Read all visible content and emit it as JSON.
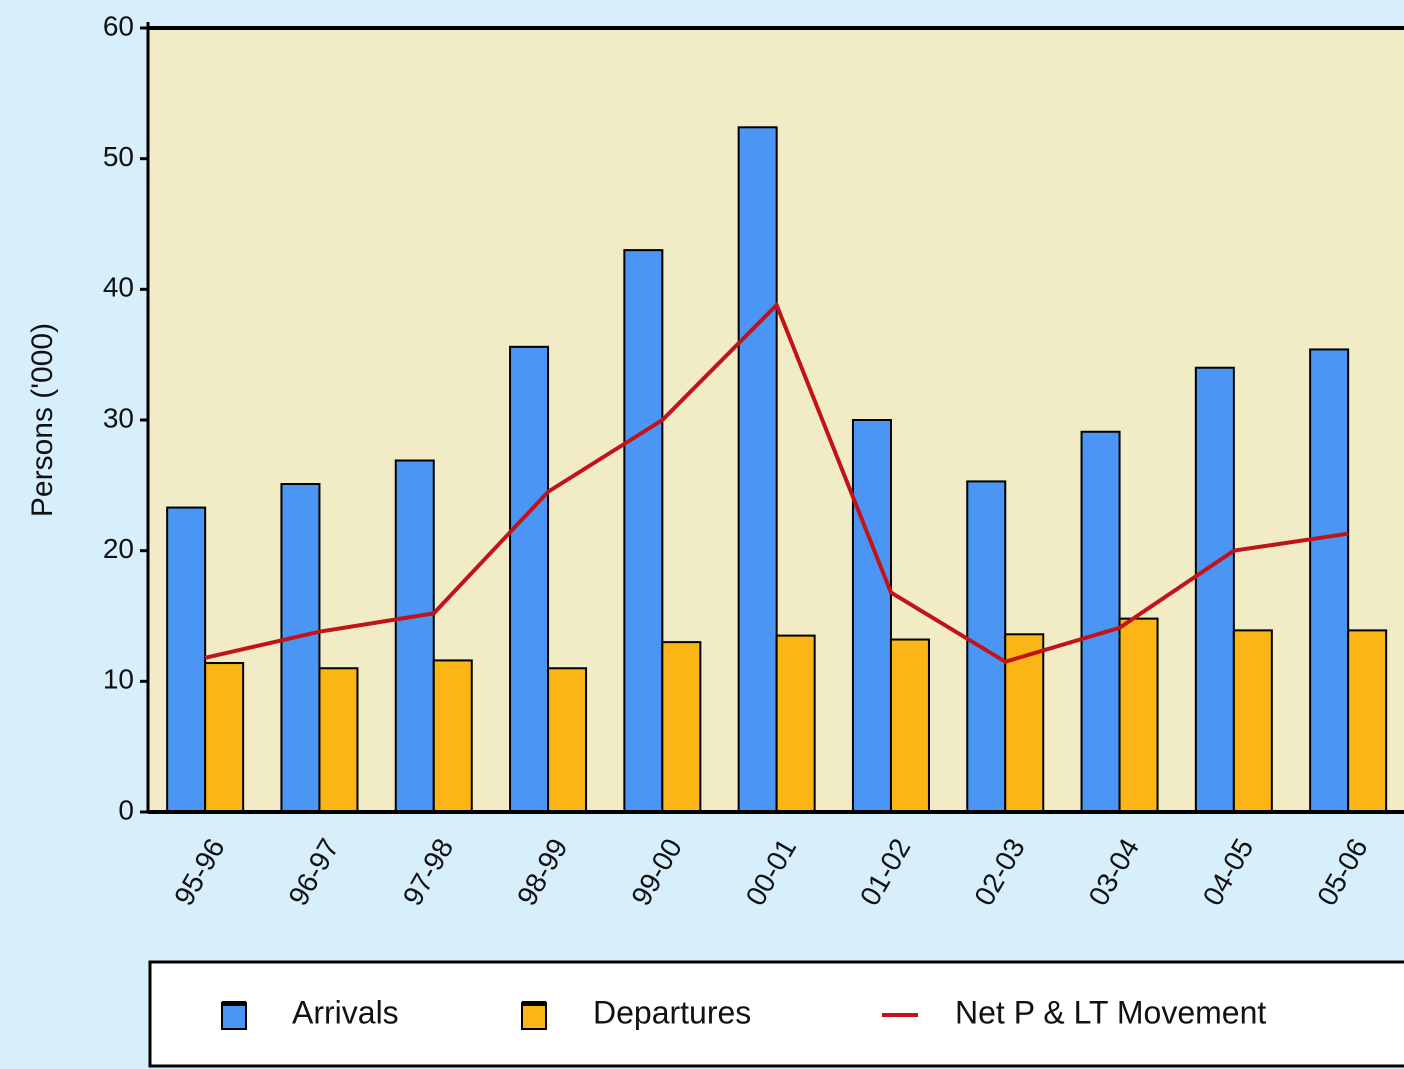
{
  "chart_data": {
    "type": "bar",
    "y_label": "Persons ('000)",
    "categories": [
      "95-96",
      "96-97",
      "97-98",
      "98-99",
      "99-00",
      "00-01",
      "01-02",
      "02-03",
      "03-04",
      "04-05",
      "05-06"
    ],
    "series": [
      {
        "name": "Arrivals",
        "type": "bar",
        "color": "#4b96f5",
        "values": [
          23.3,
          25.1,
          26.9,
          35.6,
          43.0,
          52.4,
          30.0,
          25.3,
          29.1,
          34.0,
          35.4
        ]
      },
      {
        "name": "Departures",
        "type": "bar",
        "color": "#fbb515",
        "values": [
          11.4,
          11.0,
          11.6,
          11.0,
          13.0,
          13.5,
          13.2,
          13.6,
          14.8,
          13.9,
          13.9
        ]
      },
      {
        "name": "Net P & LT Movement",
        "type": "line",
        "color": "#c0141a",
        "values": [
          11.8,
          13.8,
          15.2,
          24.5,
          30.0,
          38.8,
          16.8,
          11.5,
          14.1,
          20.0,
          21.3
        ]
      }
    ],
    "ylim": [
      0,
      60
    ],
    "yticks": [
      0,
      10,
      20,
      30,
      40,
      50,
      60
    ],
    "plot_background": "#f2ecc6"
  }
}
